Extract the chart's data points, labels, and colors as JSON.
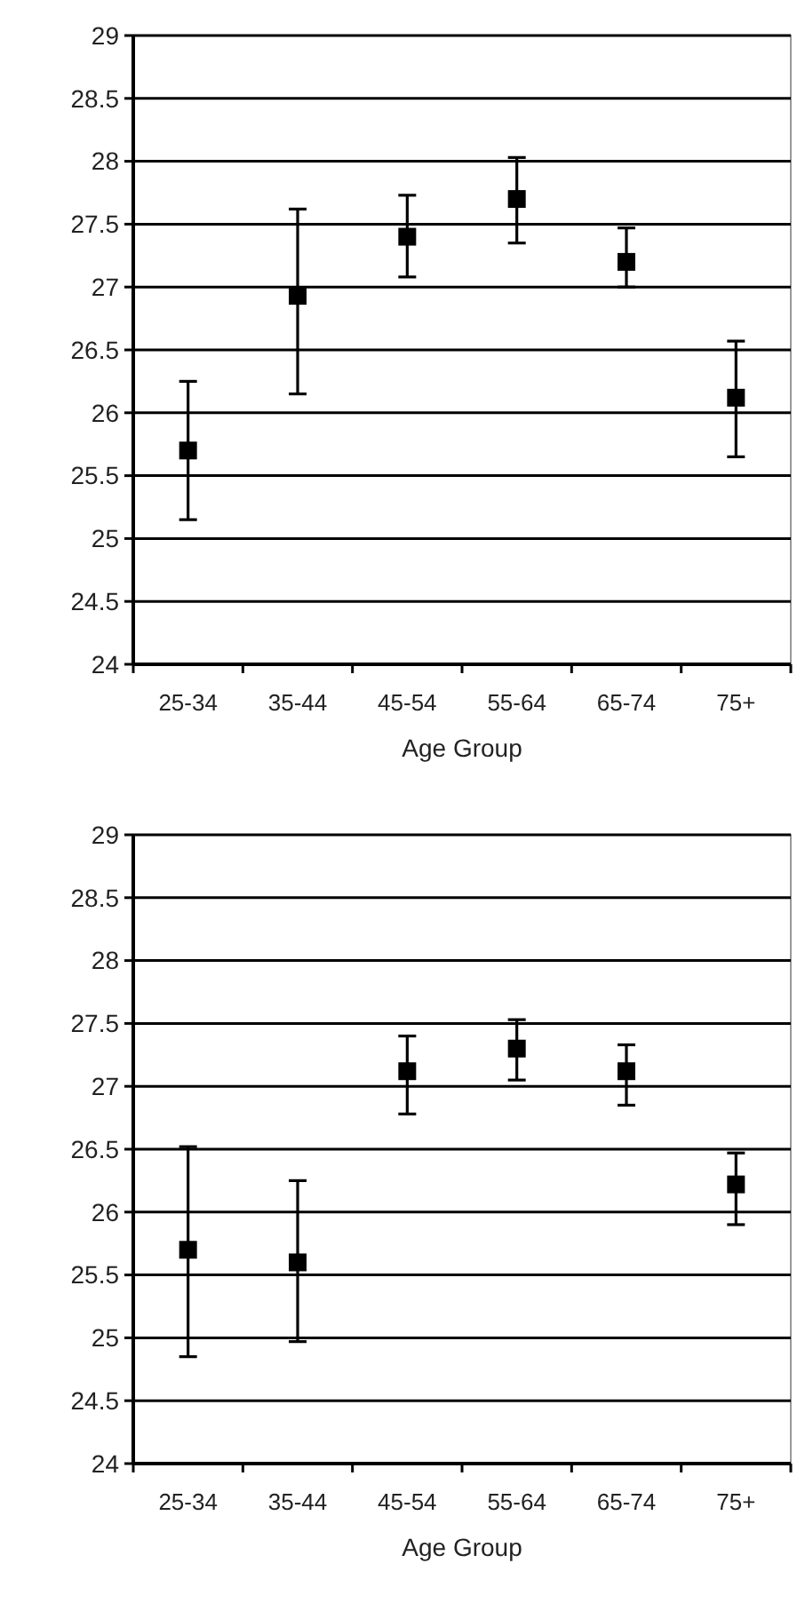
{
  "chart_data": [
    {
      "type": "scatter",
      "categories": [
        "25-34",
        "35-44",
        "45-54",
        "55-64",
        "65-74",
        "75+"
      ],
      "values": [
        25.7,
        26.93,
        27.4,
        27.7,
        27.2,
        26.12
      ],
      "errors": [
        [
          25.15,
          26.25
        ],
        [
          26.15,
          27.62
        ],
        [
          27.08,
          27.73
        ],
        [
          27.35,
          28.03
        ],
        [
          27.0,
          27.47
        ],
        [
          25.65,
          26.57
        ]
      ],
      "color": "#000000",
      "marker": "square",
      "xlabel": "Age Group",
      "ylim": [
        24,
        29
      ],
      "yticks": [
        24,
        24.5,
        25,
        25.5,
        26,
        26.5,
        27,
        27.5,
        28,
        28.5,
        29
      ],
      "grid": "y"
    },
    {
      "type": "scatter",
      "categories": [
        "25-34",
        "35-44",
        "45-54",
        "55-64",
        "65-74",
        "75+"
      ],
      "values": [
        25.7,
        25.6,
        27.12,
        27.3,
        27.12,
        26.22
      ],
      "errors": [
        [
          24.85,
          26.52
        ],
        [
          24.97,
          26.25
        ],
        [
          26.78,
          27.4
        ],
        [
          27.05,
          27.53
        ],
        [
          26.85,
          27.33
        ],
        [
          25.9,
          26.47
        ]
      ],
      "color": "#000000",
      "marker": "square",
      "xlabel": "Age Group",
      "ylim": [
        24,
        29
      ],
      "yticks": [
        24,
        24.5,
        25,
        25.5,
        26,
        26.5,
        27,
        27.5,
        28,
        28.5,
        29
      ],
      "grid": "y"
    }
  ]
}
